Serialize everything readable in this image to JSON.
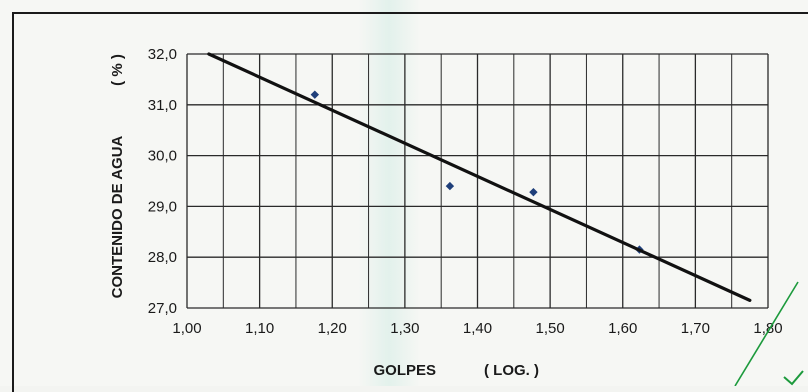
{
  "chart_data": {
    "type": "scatter",
    "xlabel": "GOLPES",
    "xlabel_unit": "( LOG. )",
    "ylabel": "CONTENIDO DE AGUA",
    "ylabel_unit": "( % )",
    "xlim": [
      1.0,
      1.8
    ],
    "ylim": [
      27.0,
      32.0
    ],
    "x_ticks": [
      "1,00",
      "1,10",
      "1,20",
      "1,30",
      "1,40",
      "1,50",
      "1,60",
      "1,70",
      "1,80"
    ],
    "y_ticks": [
      "27,0",
      "28,0",
      "29,0",
      "30,0",
      "31,0",
      "32,0"
    ],
    "grid": true,
    "colors": {
      "points": "#1f3f7a",
      "trendline": "#111111",
      "grid": "#2a2a2a"
    },
    "series": [
      {
        "type": "scatter",
        "x": [
          1.176,
          1.362,
          1.477,
          1.623
        ],
        "y": [
          31.2,
          29.4,
          29.28,
          28.15
        ]
      },
      {
        "type": "line",
        "x": [
          1.03,
          1.775
        ],
        "y": [
          32.0,
          27.15
        ]
      }
    ]
  }
}
